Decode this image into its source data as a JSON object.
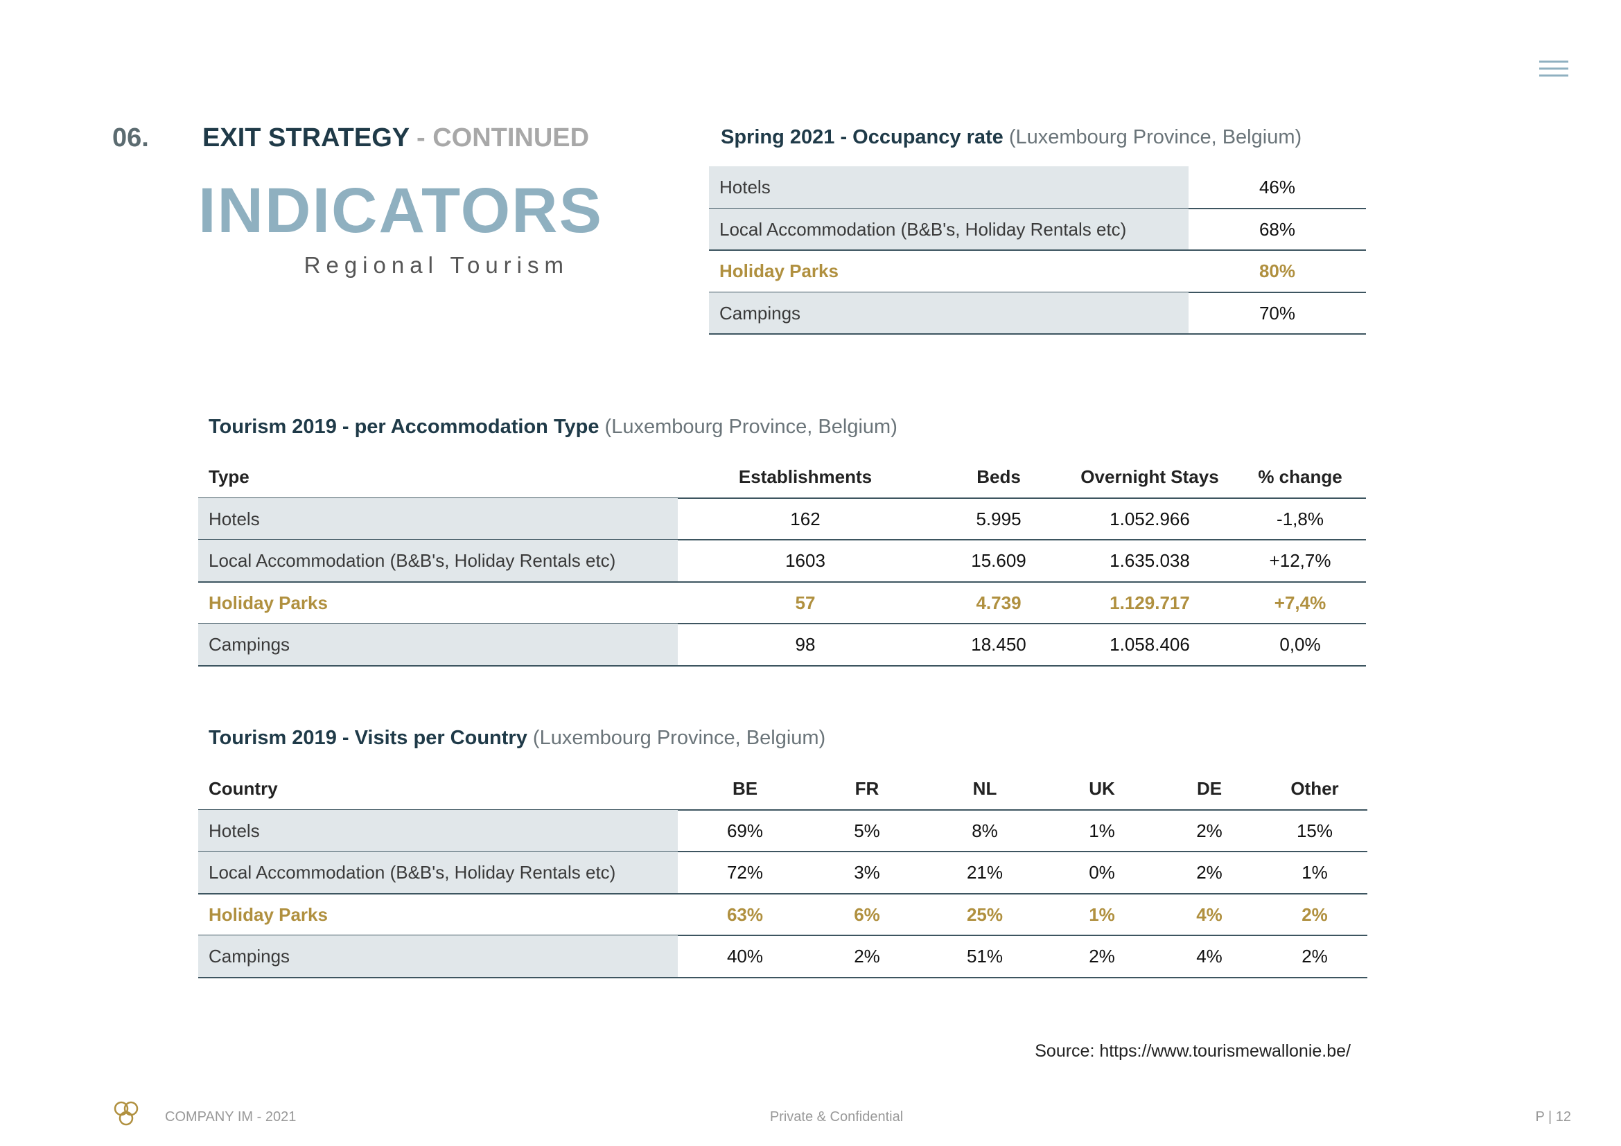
{
  "header": {
    "section_number": "06.",
    "title": "EXIT STRATEGY",
    "title_suffix": "- CONTINUED",
    "heading": "INDICATORS",
    "subheading": "Regional Tourism"
  },
  "occupancy_table": {
    "title": "Spring 2021 - Occupancy rate",
    "title_note": "(Luxembourg Province, Belgium)",
    "rows": [
      [
        "Hotels",
        "46%"
      ],
      [
        "Local Accommodation (B&B's, Holiday Rentals etc)",
        "68%"
      ],
      [
        "Holiday Parks",
        "80%"
      ],
      [
        "Campings",
        "70%"
      ]
    ],
    "highlight_row": 2
  },
  "accommodation_table": {
    "title": "Tourism 2019 - per Accommodation Type",
    "title_note": "(Luxembourg Province, Belgium)",
    "columns": [
      "Type",
      "Establishments",
      "Beds",
      "Overnight Stays",
      "% change"
    ],
    "rows": [
      [
        "Hotels",
        "162",
        "5.995",
        "1.052.966",
        "-1,8%"
      ],
      [
        "Local Accommodation (B&B's, Holiday Rentals etc)",
        "1603",
        "15.609",
        "1.635.038",
        "+12,7%"
      ],
      [
        "Holiday Parks",
        "57",
        "4.739",
        "1.129.717",
        "+7,4%"
      ],
      [
        "Campings",
        "98",
        "18.450",
        "1.058.406",
        "0,0%"
      ]
    ],
    "highlight_row": 2
  },
  "country_table": {
    "title": "Tourism 2019 - Visits per Country",
    "title_note": "(Luxembourg Province, Belgium)",
    "columns": [
      "Country",
      "BE",
      "FR",
      "NL",
      "UK",
      "DE",
      "Other"
    ],
    "rows": [
      [
        "Hotels",
        "69%",
        "5%",
        "8%",
        "1%",
        "2%",
        "15%"
      ],
      [
        "Local Accommodation (B&B's, Holiday Rentals etc)",
        "72%",
        "3%",
        "21%",
        "0%",
        "2%",
        "1%"
      ],
      [
        "Holiday Parks",
        "63%",
        "6%",
        "25%",
        "1%",
        "4%",
        "2%"
      ],
      [
        "Campings",
        "40%",
        "2%",
        "51%",
        "2%",
        "4%",
        "2%"
      ]
    ],
    "highlight_row": 2
  },
  "source": "Source: https://www.tourismewallonie.be/",
  "footer": {
    "company": "COMPANY IM - 2021",
    "confidentiality": "Private & Confidential",
    "page": "P | 12"
  }
}
